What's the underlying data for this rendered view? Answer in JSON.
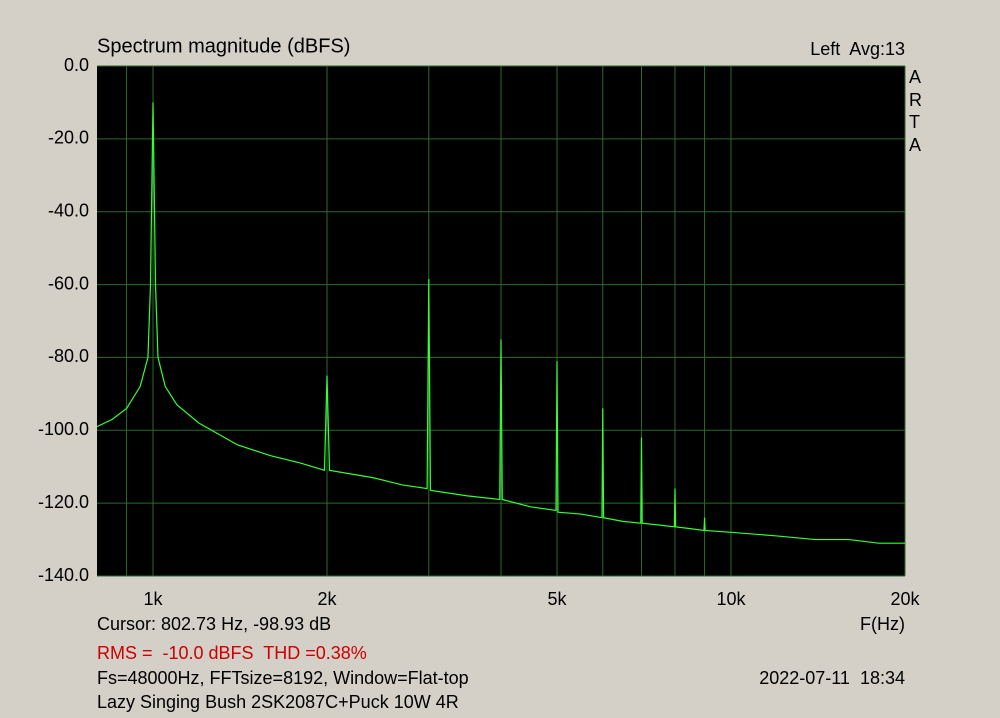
{
  "chart_data": {
    "type": "line",
    "title": "Spectrum magnitude (dBFS)",
    "channel_label": "Left  Avg:13",
    "watermark": "ARTA",
    "xlabel": "F(Hz)",
    "cursor": "Cursor: 802.73 Hz, -98.93 dB",
    "rms": "RMS =  -10.0 dBFS  THD =0.38%",
    "settings": "Fs=48000Hz, FFTsize=8192, Window=Flat-top",
    "timestamp": "2022-07-11  18:34",
    "description": "Lazy Singing Bush 2SK2087C+Puck 10W 4R",
    "log_x": true,
    "grid": true,
    "xlim": [
      800,
      20000
    ],
    "ylim": [
      -140,
      0
    ],
    "xticks": [
      {
        "value": 1000,
        "label": "1k"
      },
      {
        "value": 2000,
        "label": "2k"
      },
      {
        "value": 5000,
        "label": "5k"
      },
      {
        "value": 10000,
        "label": "10k"
      },
      {
        "value": 20000,
        "label": "20k"
      }
    ],
    "xgrid_minor": [
      900,
      3000,
      4000,
      6000,
      7000,
      8000,
      9000
    ],
    "yticks": [
      {
        "value": 0,
        "label": "0.0"
      },
      {
        "value": -20,
        "label": "-20.0"
      },
      {
        "value": -40,
        "label": "-40.0"
      },
      {
        "value": -60,
        "label": "-60.0"
      },
      {
        "value": -80,
        "label": "-80.0"
      },
      {
        "value": -100,
        "label": "-100.0"
      },
      {
        "value": -120,
        "label": "-120.0"
      },
      {
        "value": -140,
        "label": "-140.0"
      }
    ],
    "x": [
      800,
      850,
      900,
      950,
      980,
      990,
      1000,
      1010,
      1020,
      1050,
      1100,
      1200,
      1400,
      1600,
      1800,
      1980,
      2000,
      2020,
      2400,
      2700,
      2980,
      3000,
      3020,
      3500,
      3980,
      4000,
      4020,
      4500,
      4980,
      5000,
      5020,
      5500,
      5980,
      6000,
      6020,
      6500,
      6980,
      7000,
      7020,
      7500,
      7980,
      8000,
      8020,
      8500,
      8980,
      9000,
      9020,
      10000,
      12000,
      14000,
      16000,
      18000,
      20000
    ],
    "series": [
      {
        "name": "Left",
        "color": "#33ff33",
        "values": [
          -99,
          -97,
          -94,
          -88,
          -80,
          -60,
          -10,
          -60,
          -80,
          -88,
          -93,
          -98,
          -104,
          -107,
          -109,
          -111,
          -85,
          -111,
          -113,
          -115,
          -116,
          -58.5,
          -116.5,
          -118,
          -119,
          -75,
          -119,
          -121,
          -122,
          -81,
          -122.5,
          -123,
          -124,
          -94,
          -124,
          -125,
          -125.5,
          -102,
          -125.5,
          -126,
          -126.5,
          -116,
          -126.5,
          -127,
          -127.5,
          -124,
          -127.5,
          -128,
          -129,
          -130,
          -130,
          -131,
          -131
        ]
      }
    ]
  }
}
